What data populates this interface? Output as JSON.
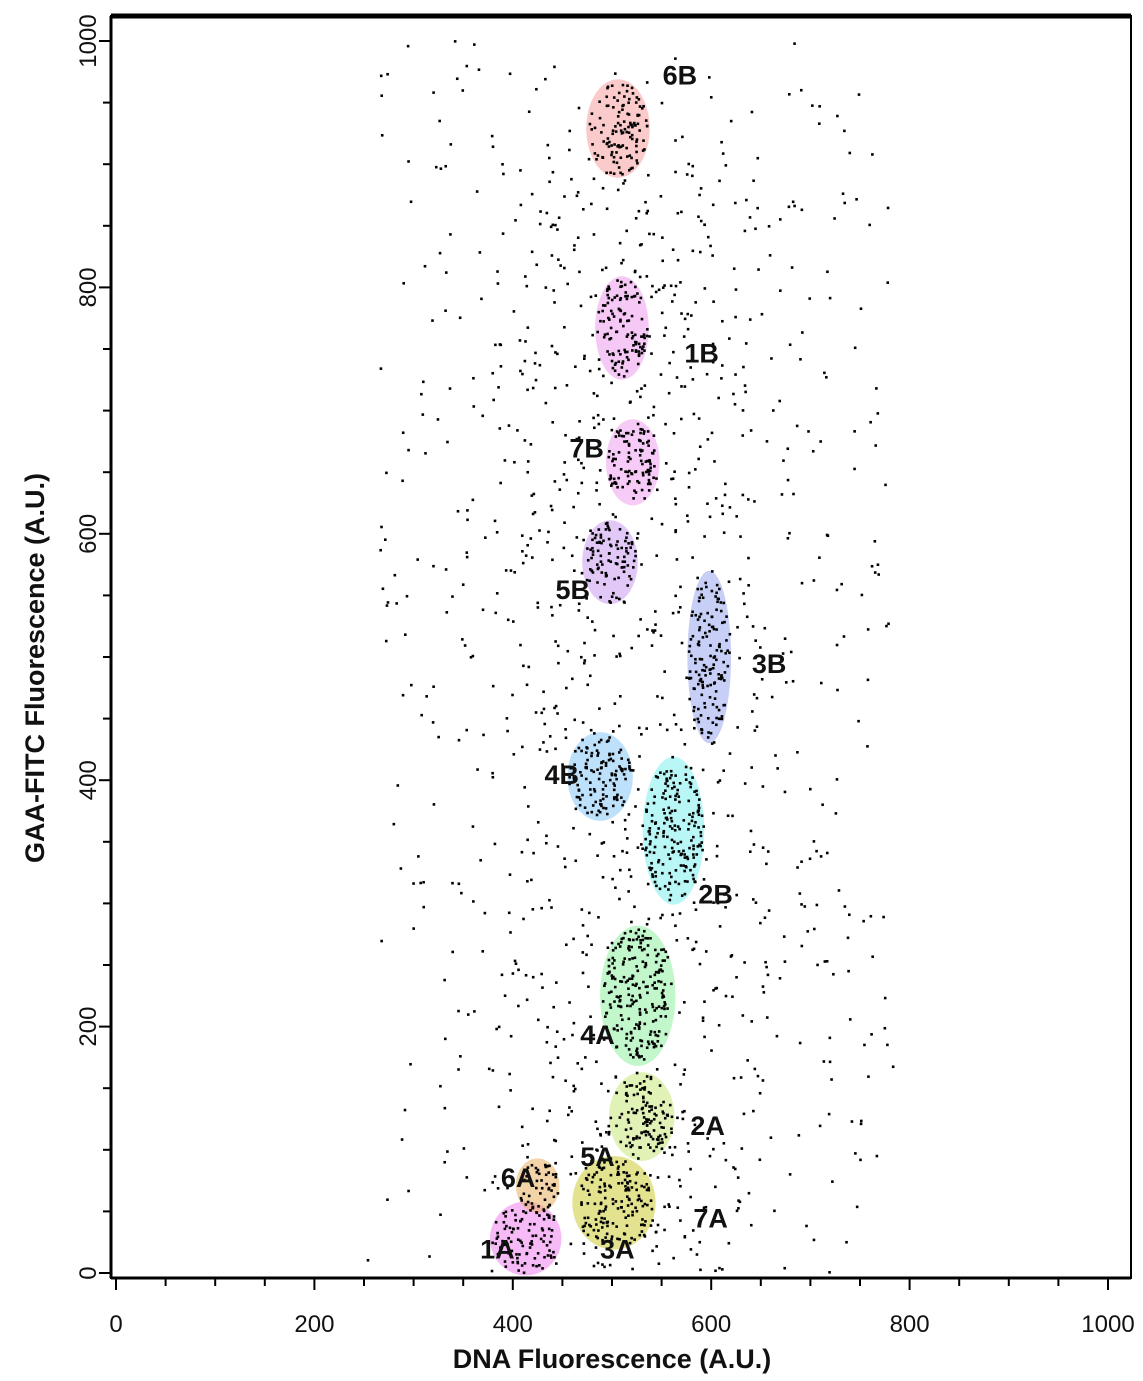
{
  "chart_data": {
    "type": "scatter",
    "title": "",
    "xlabel": "DNA Fluorescence (A.U.)",
    "ylabel": "GAA-FITC Fluorescence (A.U.)",
    "xlim": [
      0,
      1000
    ],
    "ylim": [
      0,
      1000
    ],
    "xticks": [
      "0",
      "200",
      "400",
      "600",
      "800",
      "1000"
    ],
    "yticks": [
      "0",
      "200",
      "400",
      "600",
      "800",
      "1000"
    ],
    "grid": false,
    "legend": "none",
    "clusters": [
      {
        "label": "1A",
        "center": [
          413,
          28
        ],
        "radius": [
          36,
          30
        ],
        "color": "#ee82ee",
        "label_at": [
          367,
          20
        ]
      },
      {
        "label": "3A",
        "center": [
          502,
          57
        ],
        "radius": [
          42,
          38
        ],
        "color": "#cccc33",
        "label_at": [
          488,
          20
        ]
      },
      {
        "label": "7A",
        "center": [
          502,
          57
        ],
        "radius": [
          42,
          38
        ],
        "color": "#cccc33",
        "label_at": [
          582,
          45
        ]
      },
      {
        "label": "6A",
        "center": [
          425,
          71
        ],
        "radius": [
          22,
          22
        ],
        "color": "#e8b060",
        "label_at": [
          388,
          78
        ]
      },
      {
        "label": "5A",
        "center": [
          502,
          57
        ],
        "radius": [
          42,
          38
        ],
        "color": "#cccc33",
        "label_at": [
          468,
          95
        ]
      },
      {
        "label": "2A",
        "center": [
          530,
          127
        ],
        "radius": [
          33,
          36
        ],
        "color": "#c8e87a",
        "label_at": [
          579,
          120
        ]
      },
      {
        "label": "4A",
        "center": [
          526,
          225
        ],
        "radius": [
          38,
          57
        ],
        "color": "#90eea0",
        "label_at": [
          468,
          194
        ]
      },
      {
        "label": "2B",
        "center": [
          562,
          359
        ],
        "radius": [
          31,
          60
        ],
        "color": "#80f0f0",
        "label_at": [
          587,
          308
        ]
      },
      {
        "label": "4B",
        "center": [
          488,
          403
        ],
        "radius": [
          33,
          36
        ],
        "color": "#88c8f8",
        "label_at": [
          432,
          405
        ]
      },
      {
        "label": "3B",
        "center": [
          598,
          500
        ],
        "radius": [
          22,
          70
        ],
        "color": "#9aa8ee",
        "label_at": [
          641,
          495
        ]
      },
      {
        "label": "5B",
        "center": [
          498,
          577
        ],
        "radius": [
          28,
          34
        ],
        "color": "#c89af0",
        "label_at": [
          443,
          555
        ]
      },
      {
        "label": "7B",
        "center": [
          521,
          658
        ],
        "radius": [
          27,
          35
        ],
        "color": "#f0a0f0",
        "label_at": [
          457,
          670
        ]
      },
      {
        "label": "1B",
        "center": [
          510,
          767
        ],
        "radius": [
          27,
          42
        ],
        "color": "#ee9aee",
        "label_at": [
          573,
          747
        ]
      },
      {
        "label": "6B",
        "center": [
          506,
          929
        ],
        "radius": [
          32,
          40
        ],
        "color": "#f8a0a0",
        "label_at": [
          551,
          973
        ]
      }
    ],
    "background_points": {
      "color": "#000000",
      "description_points": "Dense scatter of single-cell events, concentrated at x 450-600 across y 0-900, sparser from x 260 to 780"
    }
  }
}
